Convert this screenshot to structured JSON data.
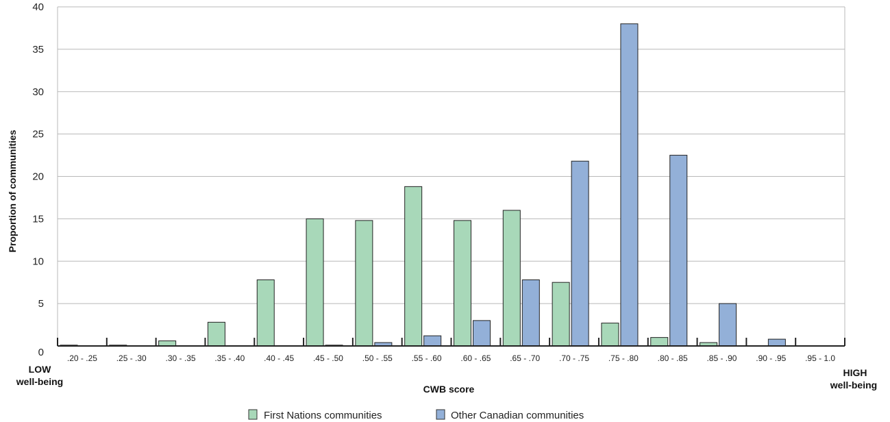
{
  "chart_data": {
    "type": "bar",
    "xlabel": "CWB score",
    "ylabel": "Proportion of communities",
    "ylim": [
      0,
      40
    ],
    "yticks": [
      "0",
      "5",
      "10",
      "15",
      "20",
      "25",
      "30",
      "35",
      "40"
    ],
    "grid": true,
    "legend_position": "bottom",
    "low_label": [
      "LOW",
      "well-being"
    ],
    "high_label": [
      "HIGH",
      "well-being"
    ],
    "categories": [
      ".20 - .25",
      ".25 - .30",
      ".30 - .35",
      ".35 - .40",
      ".40 - .45",
      ".45 - .50",
      ".50 - .55",
      ".55 - .60",
      ".60 - .65",
      ".65 - .70",
      ".70 - .75",
      ".75 - .80",
      ".80 - .85",
      ".85 - .90",
      ".90 - .95",
      ".95 - 1.0"
    ],
    "series": [
      {
        "name": "First Nations communities",
        "color": "#a8d8b9",
        "values": [
          0.1,
          0.1,
          0.6,
          2.8,
          7.8,
          15.0,
          14.8,
          18.8,
          14.8,
          16.0,
          7.5,
          2.7,
          1.0,
          0.4,
          0,
          0
        ]
      },
      {
        "name": "Other Canadian communities",
        "color": "#93b0d8",
        "values": [
          0,
          0,
          0,
          0,
          0,
          0.1,
          0.4,
          1.2,
          3.0,
          7.8,
          21.8,
          38.0,
          22.5,
          5.0,
          0.8,
          0
        ]
      }
    ]
  }
}
